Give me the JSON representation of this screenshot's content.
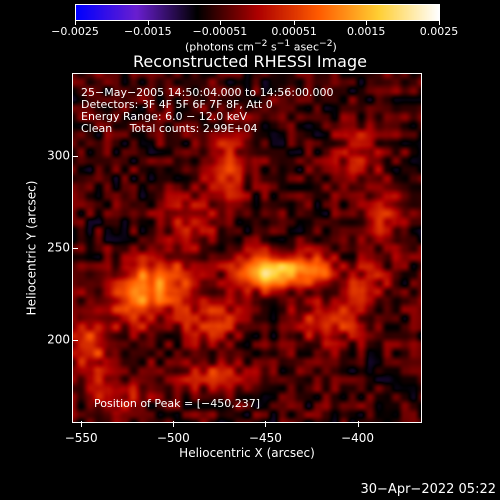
{
  "colorbar": {
    "tick_labels": [
      "−0.0025",
      "−0.0015",
      "−0.00051",
      "0.00051",
      "0.0015",
      "0.0025"
    ],
    "range": [
      -0.0025,
      0.0025
    ],
    "unit_html": "(photons cm<sup>−2</sup> s<sup>−1</sup> asec<sup>−2</sup>)",
    "colors": [
      "#0000ff",
      "#6a1fd0",
      "#000000",
      "#ad0000",
      "#ff5a00",
      "#ffcf33",
      "#ffffff"
    ]
  },
  "chart_data": {
    "type": "heatmap",
    "title": "Reconstructed RHESSI Image",
    "xlabel": "Heliocentric X (arcsec)",
    "ylabel": "Heliocentric Y (arcsec)",
    "xlim": [
      -555,
      -365
    ],
    "ylim": [
      155,
      345
    ],
    "xticks": [
      -550,
      -500,
      -450,
      -400
    ],
    "xtick_labels": [
      "−550",
      "−500",
      "−450",
      "−400"
    ],
    "yticks": [
      200,
      250,
      300
    ],
    "ytick_labels": [
      "200",
      "250",
      "300"
    ],
    "peak": [
      -450,
      237
    ],
    "sources": [
      {
        "x": -450,
        "y": 237,
        "amp": 0.0022,
        "sx": 12,
        "sy": 7
      },
      {
        "x": -425,
        "y": 238,
        "amp": 0.0016,
        "sx": 10,
        "sy": 6
      },
      {
        "x": -505,
        "y": 232,
        "amp": 0.0012,
        "sx": 14,
        "sy": 10
      },
      {
        "x": -520,
        "y": 222,
        "amp": 0.0011,
        "sx": 10,
        "sy": 12
      },
      {
        "x": -545,
        "y": 198,
        "amp": 0.0011,
        "sx": 8,
        "sy": 14
      },
      {
        "x": -480,
        "y": 210,
        "amp": 0.001,
        "sx": 12,
        "sy": 8
      },
      {
        "x": -415,
        "y": 210,
        "amp": 0.0011,
        "sx": 12,
        "sy": 8
      },
      {
        "x": -475,
        "y": 180,
        "amp": 0.0009,
        "sx": 14,
        "sy": 6
      },
      {
        "x": -490,
        "y": 265,
        "amp": 0.0008,
        "sx": 10,
        "sy": 10
      },
      {
        "x": -470,
        "y": 295,
        "amp": 0.0009,
        "sx": 8,
        "sy": 14
      },
      {
        "x": -400,
        "y": 300,
        "amp": 0.0008,
        "sx": 8,
        "sy": 12
      },
      {
        "x": -395,
        "y": 230,
        "amp": 0.0009,
        "sx": 8,
        "sy": 8
      },
      {
        "x": -385,
        "y": 265,
        "amp": 0.0008,
        "sx": 6,
        "sy": 12
      },
      {
        "x": -530,
        "y": 170,
        "amp": 0.0008,
        "sx": 10,
        "sy": 6
      }
    ]
  },
  "info": {
    "line1": "25−May−2005 14:50:04.000 to 14:56:00.000",
    "line2": "Detectors: 3F 4F 5F 6F 7F 8F, Att 0",
    "line3": "Energy Range: 6.0 − 12.0 keV",
    "line4": "Clean     Total counts: 2.99E+04",
    "peak_label": "Position of Peak = [−450,237]"
  },
  "footer": "30−Apr−2022 05:22"
}
